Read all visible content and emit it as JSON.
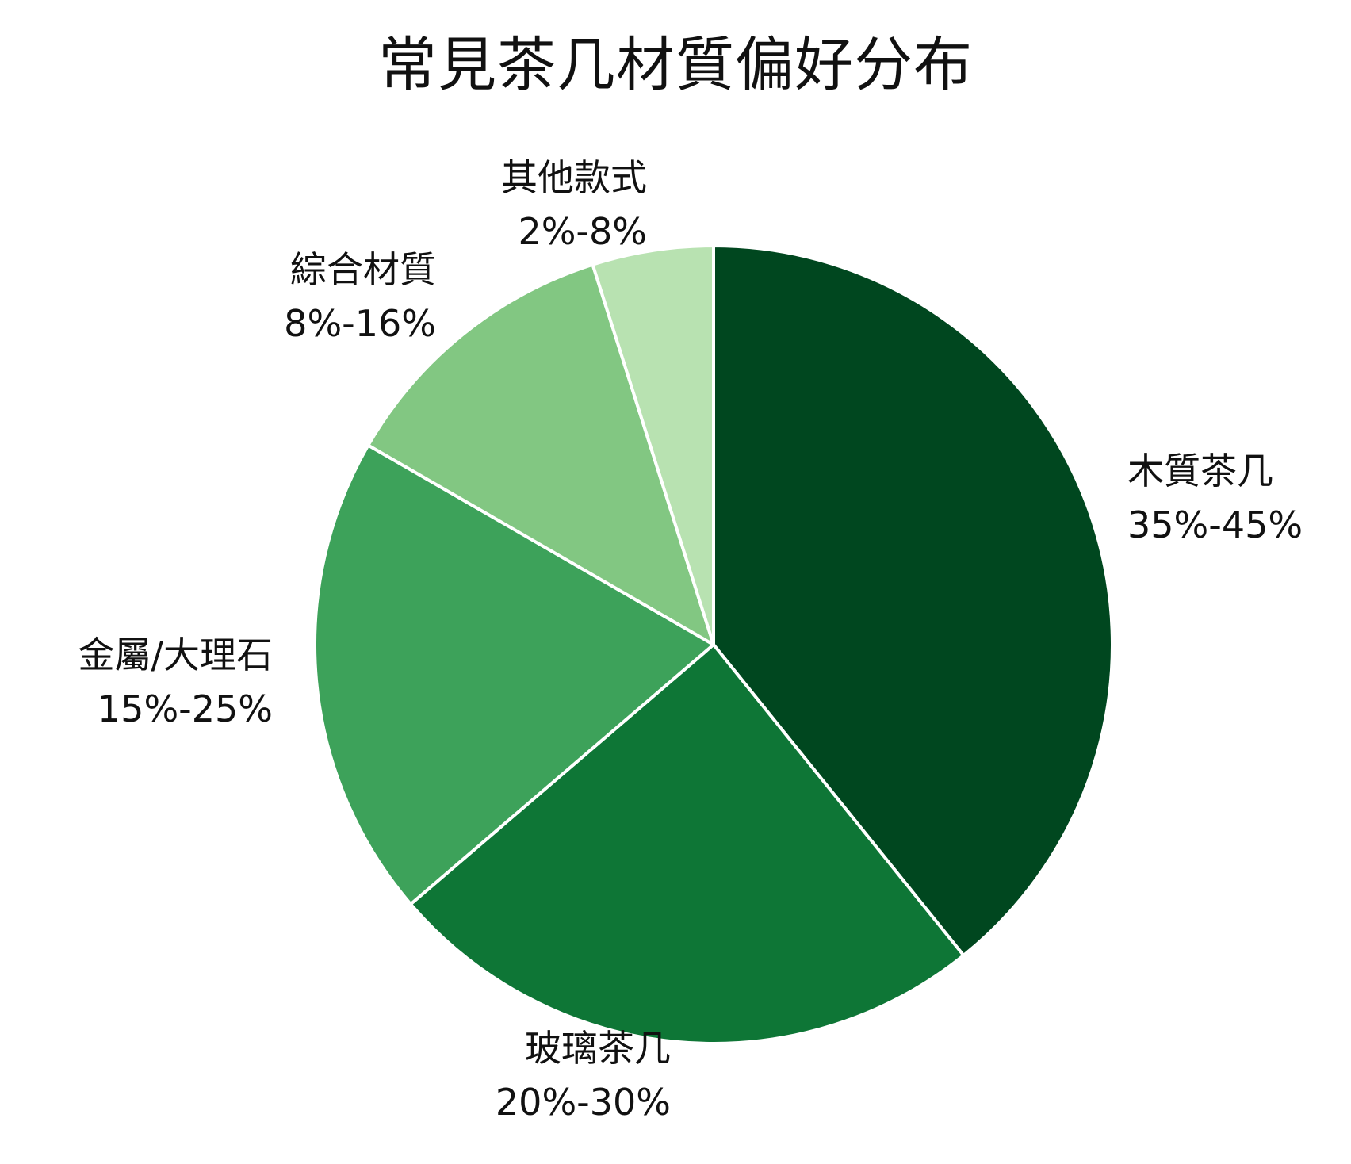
{
  "chart_data": {
    "type": "pie",
    "title": "常見茶几材質偏好分布",
    "slices": [
      {
        "label": "木質茶几",
        "range_text": "35%-45%",
        "value": 40,
        "color": "#00471f"
      },
      {
        "label": "玻璃茶几",
        "range_text": "20%-30%",
        "value": 25,
        "color": "#0e7636"
      },
      {
        "label": "金屬/大理石",
        "range_text": "15%-25%",
        "value": 20,
        "color": "#3da25a"
      },
      {
        "label": "綜合材質",
        "range_text": "8%-16%",
        "value": 12,
        "color": "#82c782"
      },
      {
        "label": "其他款式",
        "range_text": "2%-8%",
        "value": 5,
        "color": "#b8e2b1"
      }
    ],
    "start_angle": "12 o'clock",
    "direction": "clockwise",
    "legend": "none"
  }
}
